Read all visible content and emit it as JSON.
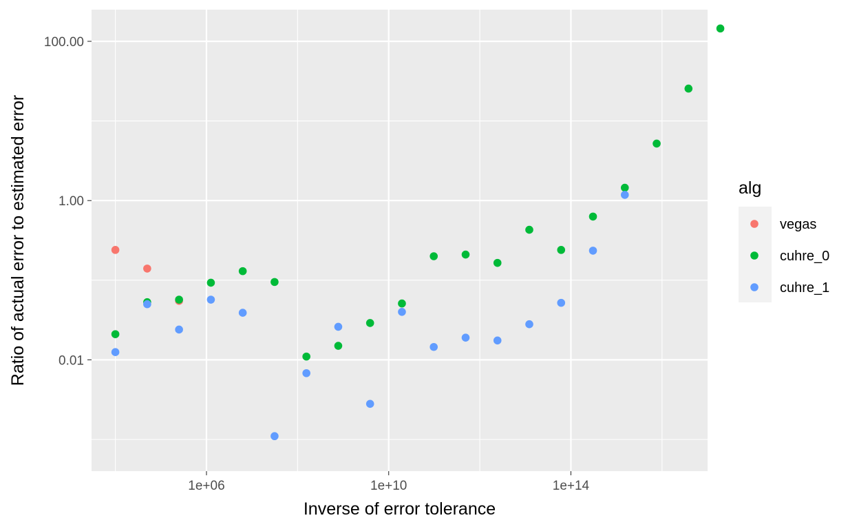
{
  "chart_data": {
    "type": "scatter",
    "xlabel": "Inverse of error tolerance",
    "ylabel": "Ratio of actual error to estimated error",
    "x_scale": "log10",
    "y_scale": "log10",
    "xlim": [
      3000,
      1e+17
    ],
    "ylim": [
      0.0004,
      250
    ],
    "x_ticks": [
      {
        "value": 1000000.0,
        "label": "1e+06"
      },
      {
        "value": 10000000000.0,
        "label": "1e+10"
      },
      {
        "value": 100000000000000.0,
        "label": "1e+14"
      }
    ],
    "y_ticks": [
      {
        "value": 0.01,
        "label": "0.01"
      },
      {
        "value": 1,
        "label": "1.00"
      },
      {
        "value": 100,
        "label": "100.00"
      }
    ],
    "grid": true,
    "legend": {
      "title": "alg",
      "position": "right"
    },
    "series": [
      {
        "name": "vegas",
        "color": "#F8766D",
        "points": [
          {
            "x": 10000,
            "y": 0.24
          },
          {
            "x": 50000,
            "y": 0.14
          },
          {
            "x": 250000,
            "y": 0.055
          }
        ]
      },
      {
        "name": "cuhre_0",
        "color": "#00BA38",
        "points": [
          {
            "x": 10000,
            "y": 0.021
          },
          {
            "x": 50000,
            "y": 0.053
          },
          {
            "x": 250000,
            "y": 0.057
          },
          {
            "x": 1250000,
            "y": 0.093
          },
          {
            "x": 6250000,
            "y": 0.13
          },
          {
            "x": 31250000,
            "y": 0.095
          },
          {
            "x": 156250000,
            "y": 0.011
          },
          {
            "x": 781250000,
            "y": 0.015
          },
          {
            "x": 3906250000,
            "y": 0.029
          },
          {
            "x": 19531250000,
            "y": 0.051
          },
          {
            "x": 97656250000,
            "y": 0.2
          },
          {
            "x": 488281250000,
            "y": 0.21
          },
          {
            "x": 2441406250000,
            "y": 0.165
          },
          {
            "x": 12207031250000,
            "y": 0.43
          },
          {
            "x": 61035156250000,
            "y": 0.24
          },
          {
            "x": 305175781250000,
            "y": 0.63
          },
          {
            "x": 1525878906250000,
            "y": 1.45
          },
          {
            "x": 7629394531250000,
            "y": 5.2
          },
          {
            "x": 38146972656250000,
            "y": 25.5
          },
          {
            "x": 190734863281250000,
            "y": 145
          }
        ]
      },
      {
        "name": "cuhre_1",
        "color": "#619CFF",
        "points": [
          {
            "x": 10000,
            "y": 0.0125
          },
          {
            "x": 50000,
            "y": 0.05
          },
          {
            "x": 250000,
            "y": 0.024
          },
          {
            "x": 1250000,
            "y": 0.057
          },
          {
            "x": 6250000,
            "y": 0.039
          },
          {
            "x": 31250000,
            "y": 0.0011
          },
          {
            "x": 156250000,
            "y": 0.0068
          },
          {
            "x": 781250000,
            "y": 0.026
          },
          {
            "x": 3906250000,
            "y": 0.0028
          },
          {
            "x": 19531250000,
            "y": 0.04
          },
          {
            "x": 97656250000,
            "y": 0.0145
          },
          {
            "x": 488281250000,
            "y": 0.019
          },
          {
            "x": 2441406250000,
            "y": 0.0175
          },
          {
            "x": 12207031250000,
            "y": 0.028
          },
          {
            "x": 61035156250000,
            "y": 0.052
          },
          {
            "x": 305175781250000,
            "y": 0.235
          },
          {
            "x": 1525878906250000,
            "y": 1.18
          }
        ]
      }
    ]
  }
}
